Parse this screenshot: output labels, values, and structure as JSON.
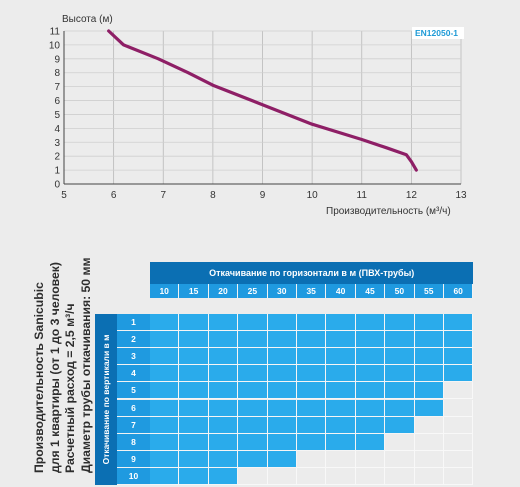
{
  "chart_data": {
    "type": "line",
    "ylabel": "Высота (м)",
    "xlabel": "Производительность (м³/ч)",
    "standard_badge": "EN12050-1",
    "xlim": [
      5,
      13
    ],
    "ylim": [
      0,
      11
    ],
    "x_ticks": [
      "5",
      "6",
      "7",
      "8",
      "9",
      "10",
      "11",
      "12",
      "13"
    ],
    "y_ticks": [
      "0",
      "1",
      "2",
      "3",
      "4",
      "5",
      "6",
      "7",
      "8",
      "9",
      "10",
      "11"
    ],
    "grid": true,
    "series": [
      {
        "color": "#8e1f66",
        "x": [
          5.9,
          6.2,
          6.9,
          7.5,
          8.0,
          9.0,
          10.0,
          11.0,
          11.5,
          11.9,
          12.0,
          12.1
        ],
        "y": [
          11.0,
          10.0,
          9.0,
          8.0,
          7.1,
          5.7,
          4.3,
          3.2,
          2.6,
          2.1,
          1.6,
          1.0
        ]
      }
    ]
  },
  "side_text": [
    "Производительность Sanicubic",
    "для 1 квартиры (от 1 до 3 человек)",
    "Расчетный расход = 2,5 м³/ч",
    "Диаметр трубы откачивания: 50 мм"
  ],
  "table": {
    "horizontal_title": "Откачивание по горизонтали  в м (ПВХ-трубы)",
    "vertical_title": "Откачивание по вертикали в м",
    "horizontal_values": [
      "10",
      "15",
      "20",
      "25",
      "30",
      "35",
      "40",
      "45",
      "50",
      "55",
      "60"
    ],
    "vertical_values": [
      "1",
      "2",
      "3",
      "4",
      "5",
      "6",
      "7",
      "8",
      "9",
      "10"
    ],
    "max_horizontal_index_by_row": [
      10,
      10,
      10,
      10,
      9,
      9,
      8,
      7,
      4,
      2
    ],
    "colors": {
      "header_dark": "#0b6fb3",
      "header_mid": "#1f9ae0",
      "allowed": "#2aabeb",
      "not_allowed": "#ececec"
    }
  }
}
